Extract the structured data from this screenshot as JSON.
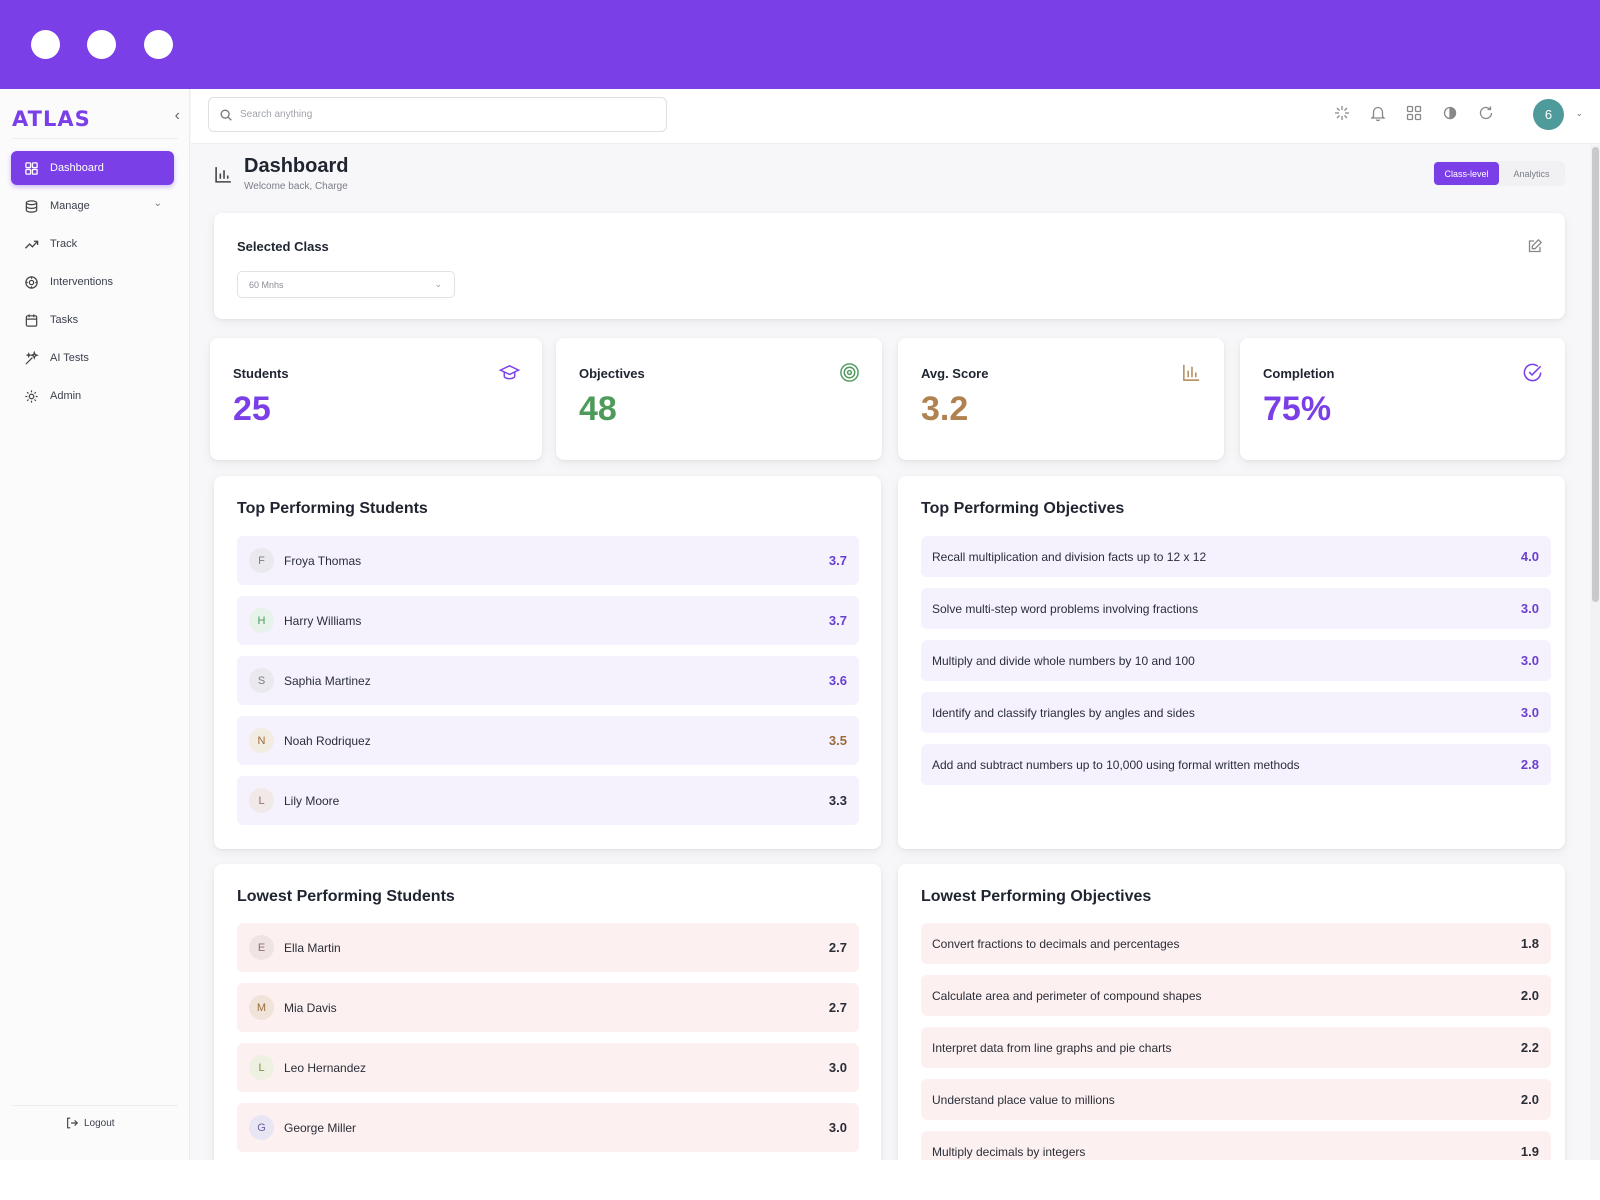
{
  "colors": {
    "brand": "#7b3fe8",
    "students_value": "#7b3fe8",
    "objectives_value": "#4e9a5a",
    "avg_value": "#b08250",
    "completion_value": "#7b3fe8",
    "score_purple": "#6a3fd0",
    "score_dark": "#2a2e38",
    "score_brown": "#9a6b3a"
  },
  "sidebar": {
    "logo": "ATLAS",
    "items": [
      {
        "label": "Dashboard",
        "icon": "dashboard-icon"
      },
      {
        "label": "Manage",
        "icon": "database-icon"
      },
      {
        "label": "Track",
        "icon": "trend-icon"
      },
      {
        "label": "Interventions",
        "icon": "interventions-icon"
      },
      {
        "label": "Tasks",
        "icon": "calendar-icon"
      },
      {
        "label": "AI Tests",
        "icon": "sparkle-icon"
      },
      {
        "label": "Admin",
        "icon": "gear-icon"
      }
    ],
    "logout": "Logout"
  },
  "header": {
    "search_placeholder": "Search anything",
    "avatar_initial": "6",
    "icons": [
      "sync-icon",
      "bell-icon",
      "grid-icon",
      "theme-icon",
      "refresh-icon"
    ]
  },
  "page": {
    "title": "Dashboard",
    "subtitle": "Welcome back, Charge",
    "toggle": [
      "Class-level",
      "Analytics"
    ]
  },
  "selected_class": {
    "label": "Selected Class",
    "value": "60 Mnhs"
  },
  "stats": [
    {
      "label": "Students",
      "value": "25",
      "icon": "graduation-cap-icon"
    },
    {
      "label": "Objectives",
      "value": "48",
      "icon": "target-icon"
    },
    {
      "label": "Avg. Score",
      "value": "3.2",
      "icon": "bar-chart-icon"
    },
    {
      "label": "Completion",
      "value": "75%",
      "icon": "check-circle-icon"
    }
  ],
  "top_students": {
    "title": "Top Performing Students",
    "rows": [
      {
        "initial": "F",
        "name": "Froya Thomas",
        "score": "3.7"
      },
      {
        "initial": "H",
        "name": "Harry Williams",
        "score": "3.7"
      },
      {
        "initial": "S",
        "name": "Saphia Martinez",
        "score": "3.6"
      },
      {
        "initial": "N",
        "name": "Noah Rodriquez",
        "score": "3.5"
      },
      {
        "initial": "L",
        "name": "Lily Moore",
        "score": "3.3"
      }
    ]
  },
  "top_objectives": {
    "title": "Top Performing Objectives",
    "rows": [
      {
        "name": "Recall multiplication and division facts up to 12 x 12",
        "score": "4.0"
      },
      {
        "name": "Solve multi-step word problems involving fractions",
        "score": "3.0"
      },
      {
        "name": "Multiply and divide whole numbers by 10 and 100",
        "score": "3.0"
      },
      {
        "name": "Identify and classify triangles by angles and sides",
        "score": "3.0"
      },
      {
        "name": "Add and subtract numbers up to 10,000 using formal written methods",
        "score": "2.8"
      }
    ]
  },
  "low_students": {
    "title": "Lowest Performing Students",
    "rows": [
      {
        "initial": "E",
        "name": "Ella Martin",
        "score": "2.7"
      },
      {
        "initial": "M",
        "name": "Mia Davis",
        "score": "2.7"
      },
      {
        "initial": "L",
        "name": "Leo Hernandez",
        "score": "3.0"
      },
      {
        "initial": "G",
        "name": "George Miller",
        "score": "3.0"
      }
    ]
  },
  "low_objectives": {
    "title": "Lowest Performing Objectives",
    "rows": [
      {
        "name": "Convert fractions to decimals and percentages",
        "score": "1.8"
      },
      {
        "name": "Calculate area and perimeter of compound shapes",
        "score": "2.0"
      },
      {
        "name": "Interpret data from line graphs and pie charts",
        "score": "2.2"
      },
      {
        "name": "Understand place value to millions",
        "score": "2.0"
      },
      {
        "name": "Multiply decimals by integers",
        "score": "1.9"
      }
    ]
  }
}
